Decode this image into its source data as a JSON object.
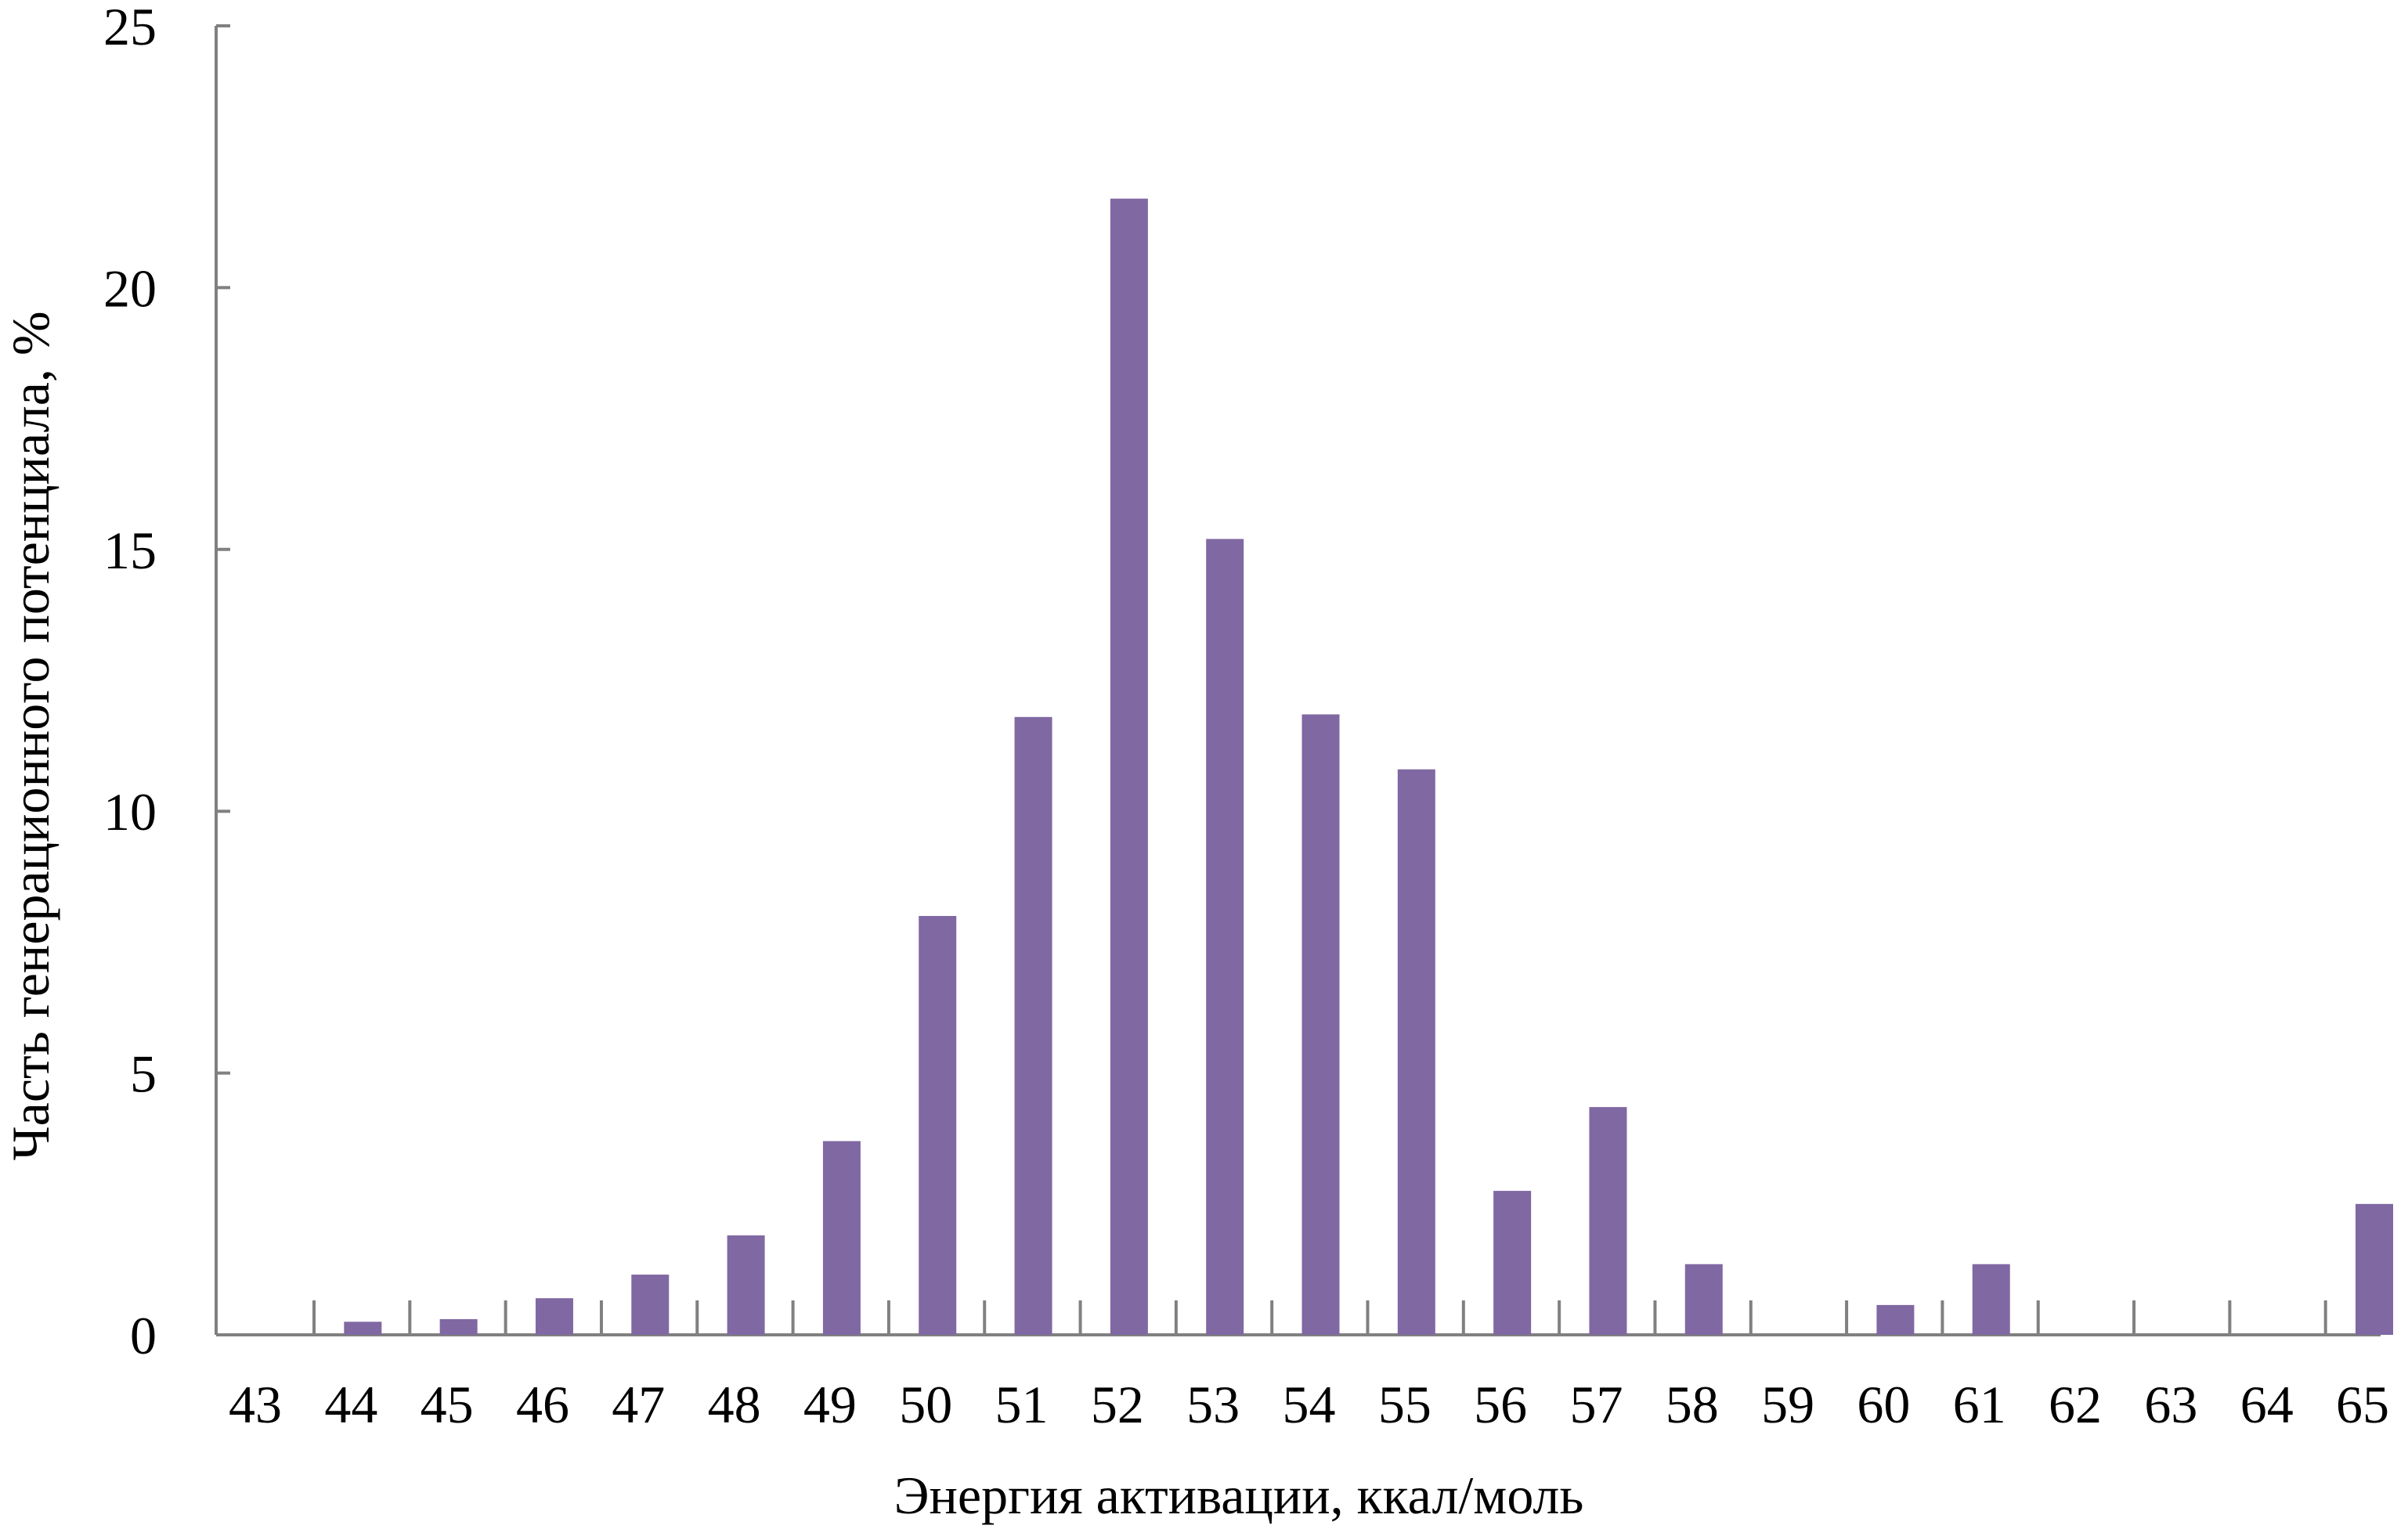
{
  "chart_data": {
    "type": "bar",
    "title": "",
    "xlabel": "Энергия активации, ккал/моль",
    "ylabel": "Часть генерационного потенциала, %",
    "categories": [
      "43",
      "44",
      "45",
      "46",
      "47",
      "48",
      "49",
      "50",
      "51",
      "52",
      "53",
      "54",
      "55",
      "56",
      "57",
      "58",
      "59",
      "60",
      "61",
      "62",
      "63",
      "64",
      "65"
    ],
    "values": [
      0,
      0.25,
      0.3,
      0.7,
      1.15,
      1.9,
      3.7,
      8.0,
      11.8,
      21.7,
      15.2,
      11.85,
      10.8,
      2.75,
      4.35,
      1.35,
      0,
      0.57,
      1.35,
      0,
      0,
      0,
      2.5
    ],
    "ylim": [
      0,
      25
    ],
    "yticks": [
      "0",
      "5",
      "10",
      "15",
      "20",
      "25"
    ],
    "grid": false,
    "legend": "none",
    "bar_color": "#8068a3",
    "axis_color": "#808080"
  }
}
